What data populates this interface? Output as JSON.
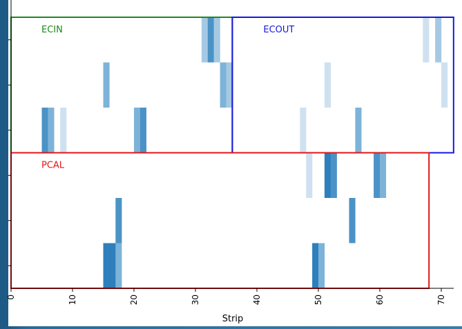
{
  "chart_data": {
    "type": "heatmap",
    "xlabel": "Strip",
    "xlim": [
      0,
      72
    ],
    "x_ticks": [
      0,
      10,
      20,
      30,
      40,
      50,
      60,
      70
    ],
    "rows": 6,
    "colors": {
      "c1": "#cfe1f0",
      "c2": "#a6c9e3",
      "c3": "#7db3d8",
      "c4": "#4b93c6",
      "c5": "#2e7fbb"
    },
    "regions": [
      {
        "label": "ECIN",
        "color": "#1a8a1a",
        "x_start": 0,
        "x_end": 36,
        "rows": [
          3,
          5
        ]
      },
      {
        "label": "ECOUT",
        "color": "#1515e0",
        "x_start": 36,
        "x_end": 72,
        "rows": [
          3,
          5
        ]
      },
      {
        "label": "PCAL",
        "color": "#e01515",
        "x_start": 0,
        "x_end": 68,
        "rows": [
          0,
          2
        ]
      }
    ],
    "cells": [
      {
        "x": 31,
        "row": 5,
        "level": 2
      },
      {
        "x": 32,
        "row": 5,
        "level": 4
      },
      {
        "x": 33,
        "row": 5,
        "level": 2
      },
      {
        "x": 67,
        "row": 5,
        "level": 1
      },
      {
        "x": 69,
        "row": 5,
        "level": 2
      },
      {
        "x": 15,
        "row": 4,
        "level": 3
      },
      {
        "x": 34,
        "row": 4,
        "level": 3
      },
      {
        "x": 35,
        "row": 4,
        "level": 2
      },
      {
        "x": 51,
        "row": 4,
        "level": 1
      },
      {
        "x": 70,
        "row": 4,
        "level": 1
      },
      {
        "x": 5,
        "row": 3,
        "level": 4
      },
      {
        "x": 6,
        "row": 3,
        "level": 3
      },
      {
        "x": 8,
        "row": 3,
        "level": 1
      },
      {
        "x": 20,
        "row": 3,
        "level": 3
      },
      {
        "x": 21,
        "row": 3,
        "level": 4
      },
      {
        "x": 47,
        "row": 3,
        "level": 1
      },
      {
        "x": 56,
        "row": 3,
        "level": 3
      },
      {
        "x": 48,
        "row": 2,
        "level": 1
      },
      {
        "x": 51,
        "row": 2,
        "level": 5
      },
      {
        "x": 52,
        "row": 2,
        "level": 4
      },
      {
        "x": 59,
        "row": 2,
        "level": 4
      },
      {
        "x": 60,
        "row": 2,
        "level": 3
      },
      {
        "x": 17,
        "row": 1,
        "level": 4
      },
      {
        "x": 55,
        "row": 1,
        "level": 4
      },
      {
        "x": 15,
        "row": 0,
        "level": 5
      },
      {
        "x": 16,
        "row": 0,
        "level": 5
      },
      {
        "x": 17,
        "row": 0,
        "level": 3
      },
      {
        "x": 49,
        "row": 0,
        "level": 5
      },
      {
        "x": 50,
        "row": 0,
        "level": 3
      }
    ]
  }
}
